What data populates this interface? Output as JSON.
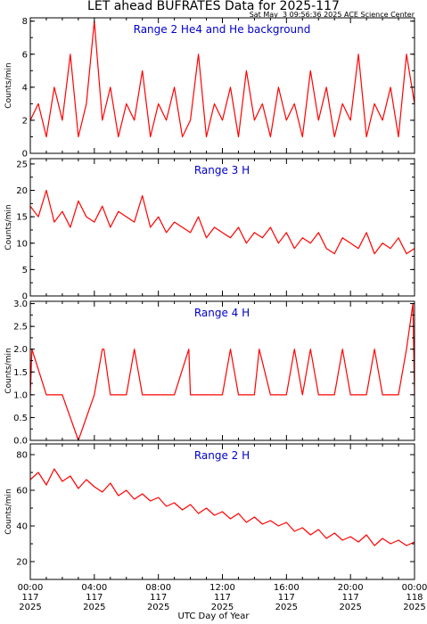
{
  "header": {
    "title": "LET ahead BUFRATES Data for 2025-117",
    "timestamp": "Sat May  3 09:56:36 2025 ACE Science Center"
  },
  "x_axis": {
    "title": "UTC Day of Year",
    "ticks": [
      {
        "hour": 0,
        "time": "00:00",
        "doy": "117",
        "year": "2025"
      },
      {
        "hour": 4,
        "time": "04:00",
        "doy": "117",
        "year": "2025"
      },
      {
        "hour": 8,
        "time": "08:00",
        "doy": "117",
        "year": "2025"
      },
      {
        "hour": 12,
        "time": "12:00",
        "doy": "117",
        "year": "2025"
      },
      {
        "hour": 16,
        "time": "16:00",
        "doy": "117",
        "year": "2025"
      },
      {
        "hour": 20,
        "time": "20:00",
        "doy": "117",
        "year": "2025"
      },
      {
        "hour": 24,
        "time": "00:00",
        "doy": "118",
        "year": "2025"
      }
    ]
  },
  "colors": {
    "series": "#ff0000",
    "label": "#0000cc",
    "axis": "#000000"
  },
  "chart_data": [
    {
      "type": "line",
      "title": "Range 2 He4 and He background",
      "ylabel": "Counts/min",
      "xlim": [
        0,
        24
      ],
      "ylim": [
        0,
        8.2
      ],
      "yticks": [
        0,
        2,
        4,
        6,
        8
      ],
      "series": [
        {
          "x": [
            0,
            0.5,
            1,
            1.5,
            2,
            2.5,
            3,
            3.5,
            4,
            4.5,
            5,
            5.5,
            6,
            6.5,
            7,
            7.5,
            8,
            8.5,
            9,
            9.5,
            10,
            10.5,
            11,
            11.5,
            12,
            12.5,
            13,
            13.5,
            14,
            14.5,
            15,
            15.5,
            16,
            16.5,
            17,
            17.5,
            18,
            18.5,
            19,
            19.5,
            20,
            20.5,
            21,
            21.5,
            22,
            22.5,
            23,
            23.5,
            24
          ],
          "values": [
            2,
            3,
            1,
            4,
            2,
            6,
            1,
            3,
            8,
            2,
            4,
            1,
            3,
            2,
            5,
            1,
            3,
            2,
            4,
            1,
            2,
            6,
            1,
            3,
            2,
            4,
            1,
            5,
            2,
            3,
            1,
            4,
            2,
            3,
            1,
            5,
            2,
            4,
            1,
            3,
            2,
            6,
            1,
            3,
            2,
            4,
            1,
            6,
            3
          ]
        }
      ]
    },
    {
      "type": "line",
      "title": "Range 3 H",
      "ylabel": "Counts/min",
      "xlim": [
        0,
        24
      ],
      "ylim": [
        0,
        26
      ],
      "yticks": [
        0,
        5,
        10,
        15,
        20,
        25
      ],
      "series": [
        {
          "x": [
            0,
            0.5,
            1,
            1.5,
            2,
            2.5,
            3,
            3.5,
            4,
            4.5,
            5,
            5.5,
            6,
            6.5,
            7,
            7.5,
            8,
            8.5,
            9,
            9.5,
            10,
            10.5,
            11,
            11.5,
            12,
            12.5,
            13,
            13.5,
            14,
            14.5,
            15,
            15.5,
            16,
            16.5,
            17,
            17.5,
            18,
            18.5,
            19,
            19.5,
            20,
            20.5,
            21,
            21.5,
            22,
            22.5,
            23,
            23.5,
            24
          ],
          "values": [
            17,
            15,
            20,
            14,
            16,
            13,
            18,
            15,
            14,
            17,
            13,
            16,
            15,
            14,
            19,
            13,
            15,
            12,
            14,
            13,
            12,
            15,
            11,
            13,
            12,
            11,
            13,
            10,
            12,
            11,
            13,
            10,
            12,
            9,
            11,
            10,
            12,
            9,
            8,
            11,
            10,
            9,
            12,
            8,
            10,
            9,
            11,
            8,
            9
          ]
        }
      ]
    },
    {
      "type": "line",
      "title": "Range 4 H",
      "ylabel": "Counts/min",
      "xlim": [
        0,
        24
      ],
      "ylim": [
        0,
        3.05
      ],
      "yticks": [
        0.0,
        0.5,
        1.0,
        1.5,
        2.0,
        2.5,
        3.0
      ],
      "series": [
        {
          "x": [
            0,
            0.1,
            1,
            2,
            3,
            4,
            4.5,
            4.6,
            5,
            6,
            6.5,
            7,
            8,
            9,
            9.9,
            10,
            11,
            12,
            12.5,
            13,
            14,
            14.3,
            15,
            16,
            16.5,
            17,
            17.5,
            18,
            19,
            19.5,
            20,
            21,
            21.5,
            22,
            23,
            23.5,
            23.9,
            24
          ],
          "values": [
            1,
            2,
            1,
            1,
            0,
            1,
            2,
            2,
            1,
            1,
            2,
            1,
            1,
            1,
            2,
            1,
            1,
            1,
            2,
            1,
            1,
            2,
            1,
            1,
            2,
            1,
            2,
            1,
            1,
            2,
            1,
            1,
            2,
            1,
            1,
            2,
            3,
            1
          ]
        }
      ]
    },
    {
      "type": "line",
      "title": "Range 2 H",
      "ylabel": "Counts/min",
      "xlim": [
        0,
        24
      ],
      "ylim": [
        10,
        86
      ],
      "yticks": [
        20,
        40,
        60,
        80
      ],
      "series": [
        {
          "x": [
            0,
            0.5,
            1,
            1.5,
            2,
            2.5,
            3,
            3.5,
            4,
            4.5,
            5,
            5.5,
            6,
            6.5,
            7,
            7.5,
            8,
            8.5,
            9,
            9.5,
            10,
            10.5,
            11,
            11.5,
            12,
            12.5,
            13,
            13.5,
            14,
            14.5,
            15,
            15.5,
            16,
            16.5,
            17,
            17.5,
            18,
            18.5,
            19,
            19.5,
            20,
            20.5,
            21,
            21.5,
            22,
            22.5,
            23,
            23.5,
            24
          ],
          "values": [
            66,
            70,
            63,
            72,
            65,
            68,
            61,
            66,
            62,
            59,
            64,
            57,
            60,
            55,
            58,
            54,
            56,
            51,
            53,
            49,
            52,
            47,
            50,
            46,
            48,
            44,
            47,
            42,
            45,
            41,
            43,
            40,
            42,
            37,
            39,
            35,
            38,
            33,
            36,
            32,
            34,
            31,
            35,
            29,
            33,
            30,
            32,
            29,
            31
          ]
        }
      ]
    }
  ]
}
